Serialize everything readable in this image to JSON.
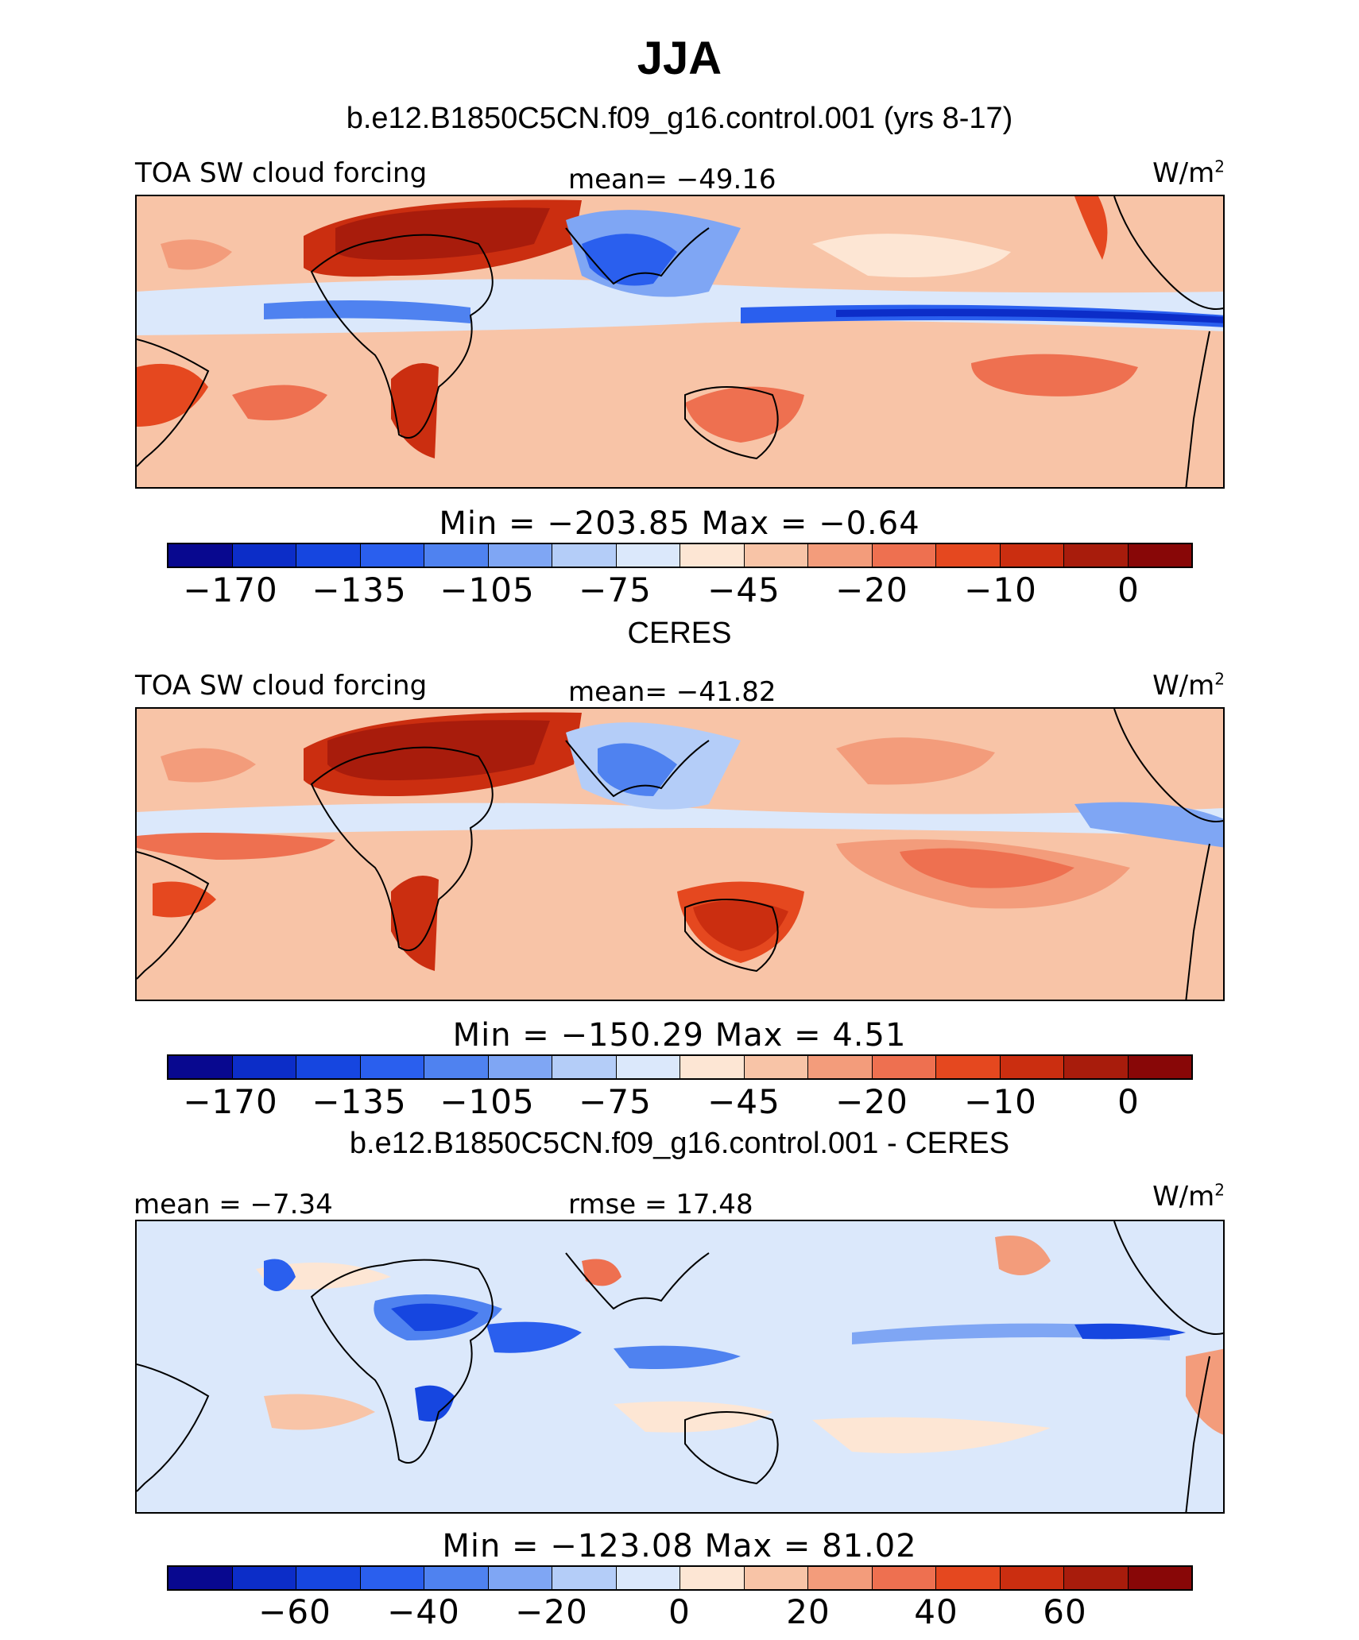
{
  "title": "JJA",
  "units": "W/m",
  "units_sup": "2",
  "variable": "TOA SW cloud forcing",
  "colors": {
    "levels": [
      "#08088f",
      "#0c2dc8",
      "#1646e0",
      "#2a5fee",
      "#4f82f0",
      "#7fa6f4",
      "#b4cdf8",
      "#dbe8fb",
      "#fde6d4",
      "#f8c4a7",
      "#f39c7b",
      "#ee7050",
      "#e5481f",
      "#cb2e10",
      "#a81c0c",
      "#880707"
    ]
  },
  "panels": [
    {
      "title": "b.e12.B1850C5CN.f09_g16.control.001 (yrs 8-17)",
      "left_label": "TOA SW cloud forcing",
      "center_label": "mean=  -49.16",
      "min_max": "Min  =  -203.85  Max  =    -0.64",
      "colorbar_ticks": [
        "-170",
        "-135",
        "-105",
        "-75",
        "-45",
        "-20",
        "-10",
        "0"
      ]
    },
    {
      "title": "CERES",
      "left_label": "TOA SW cloud forcing",
      "center_label": "mean=  -41.82",
      "min_max": "Min  =  -150.29  Max  =     4.51",
      "colorbar_ticks": [
        "-170",
        "-135",
        "-105",
        "-75",
        "-45",
        "-20",
        "-10",
        "0"
      ]
    },
    {
      "title": "b.e12.B1850C5CN.f09_g16.control.001 - CERES",
      "left_label": "mean  =   -7.34",
      "center_label": "rmse  =   17.48",
      "min_max": "Min  =  -123.08  Max  =   81.02",
      "colorbar_ticks": [
        "-60",
        "-40",
        "-20",
        "0",
        "20",
        "40",
        "60"
      ]
    }
  ]
}
